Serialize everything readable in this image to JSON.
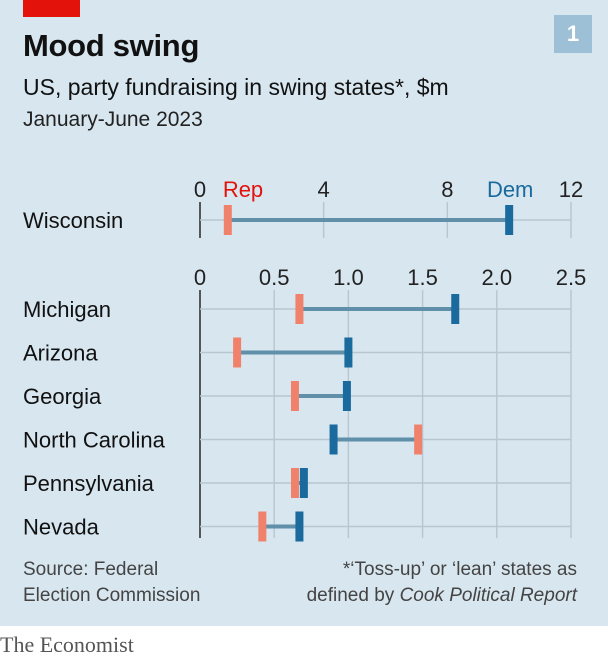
{
  "header": {
    "title": "Mood swing",
    "subtitle": "US, party fundraising in swing states*, $m",
    "period": "January-June 2023",
    "badge": "1"
  },
  "colors": {
    "panel": "#d7e6ef",
    "rep": "#f0826c",
    "dem": "#1a6a9e",
    "connector": "#5f8fa9",
    "grid": "#b7c6cf",
    "badge": "#9dc0d6",
    "red_tag": "#e3120b"
  },
  "legend": {
    "rep": "Rep",
    "dem": "Dem"
  },
  "chart_data": [
    {
      "type": "dumbbell",
      "x": {
        "min": 0,
        "max": 12,
        "ticks": [
          "0",
          "4",
          "8",
          "12"
        ]
      },
      "categories": [
        "Wisconsin"
      ],
      "series": [
        {
          "name": "Rep",
          "values": [
            0.9
          ]
        },
        {
          "name": "Dem",
          "values": [
            10.0
          ]
        }
      ]
    },
    {
      "type": "dumbbell",
      "x": {
        "min": 0,
        "max": 2.5,
        "ticks": [
          "0",
          "0.5",
          "1.0",
          "1.5",
          "2.0",
          "2.5"
        ]
      },
      "categories": [
        "Michigan",
        "Arizona",
        "Georgia",
        "North Carolina",
        "Pennsylvania",
        "Nevada"
      ],
      "series": [
        {
          "name": "Rep",
          "values": [
            0.67,
            0.25,
            0.64,
            1.47,
            0.64,
            0.42
          ]
        },
        {
          "name": "Dem",
          "values": [
            1.72,
            1.0,
            0.99,
            0.9,
            0.7,
            0.67
          ]
        }
      ]
    }
  ],
  "footer": {
    "source_line1": "Source: Federal",
    "source_line2": "Election Commission",
    "note_line1": "*‘Toss-up’ or ‘lean’ states as",
    "note_line2_prefix": "defined by ",
    "note_line2_italic": "Cook Political Report",
    "brand": "The Economist"
  }
}
